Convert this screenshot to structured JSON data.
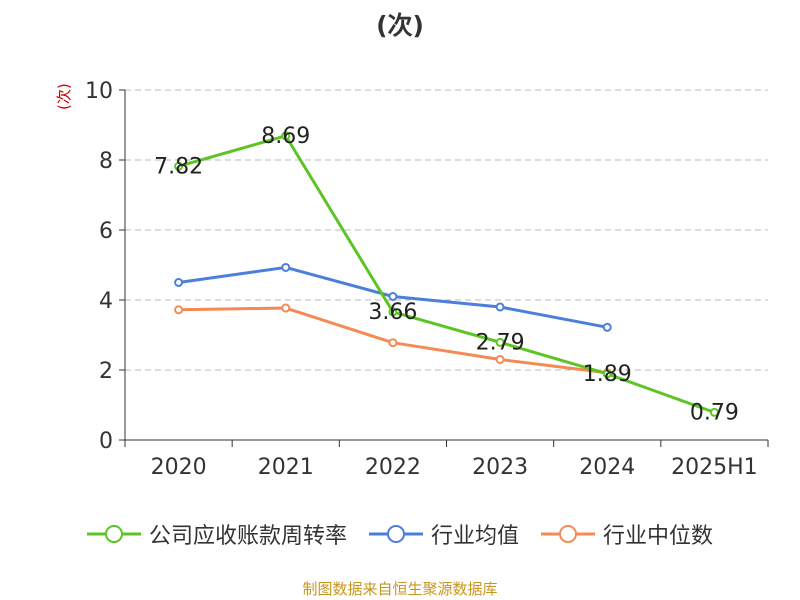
{
  "page": {
    "title": "(次)"
  },
  "chart_data": {
    "type": "line",
    "title": "(次)",
    "unit_label": "(次)",
    "categories": [
      "2020",
      "2021",
      "2022",
      "2023",
      "2024",
      "2025H1"
    ],
    "ylim": [
      0,
      10
    ],
    "yticks": [
      "0",
      "2",
      "4",
      "6",
      "8",
      "10"
    ],
    "grid": true,
    "legend_position": "bottom",
    "series": [
      {
        "name": "公司应收账款周转率",
        "color": "#5cc523",
        "values": [
          7.82,
          8.69,
          3.66,
          2.79,
          1.89,
          0.79
        ],
        "labels": [
          "7.82",
          "8.69",
          "3.66",
          "2.79",
          "1.89",
          "0.79"
        ]
      },
      {
        "name": "行业均值",
        "color": "#4a7fda",
        "values": [
          4.5,
          4.93,
          4.1,
          3.8,
          3.22,
          null
        ]
      },
      {
        "name": "行业中位数",
        "color": "#f48a54",
        "values": [
          3.72,
          3.77,
          2.78,
          2.3,
          1.92,
          null
        ]
      }
    ]
  },
  "footer": {
    "source": "制图数据来自恒生聚源数据库"
  }
}
